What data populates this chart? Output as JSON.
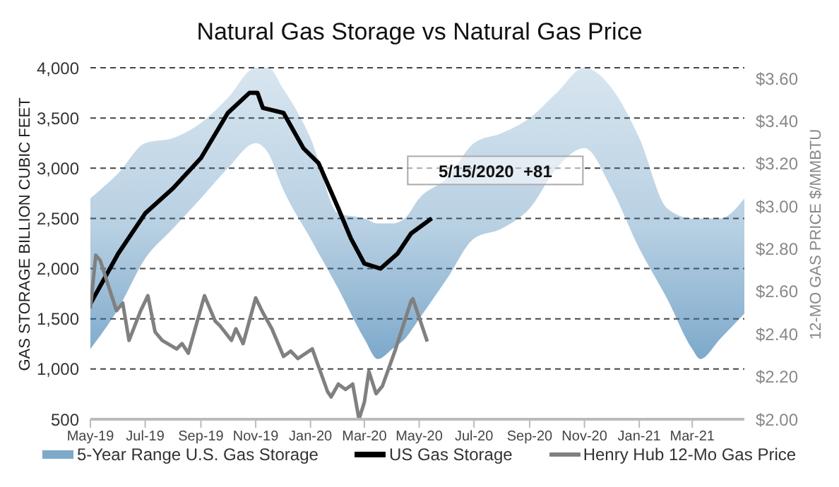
{
  "chart_data": {
    "type": "line",
    "title": "Natural Gas Storage vs Natural Gas Price",
    "ylabel": "GAS STORAGE BILLION CUBIC FEET",
    "y2label": "12-MO GAS PRICE $/MMBTU",
    "xlim": [
      "2019-05-01",
      "2021-04-28"
    ],
    "xticks": [
      {
        "value": "2019-05-01",
        "label": "May-19"
      },
      {
        "value": "2019-07-01",
        "label": "Jul-19"
      },
      {
        "value": "2019-09-01",
        "label": "Sep-19"
      },
      {
        "value": "2019-11-01",
        "label": "Nov-19"
      },
      {
        "value": "2020-01-01",
        "label": "Jan-20"
      },
      {
        "value": "2020-03-01",
        "label": "Mar-20"
      },
      {
        "value": "2020-05-01",
        "label": "May-20"
      },
      {
        "value": "2020-07-01",
        "label": "Jul-20"
      },
      {
        "value": "2020-09-01",
        "label": "Sep-20"
      },
      {
        "value": "2020-11-01",
        "label": "Nov-20"
      },
      {
        "value": "2021-01-01",
        "label": "Jan-21"
      },
      {
        "value": "2021-03-01",
        "label": "Mar-21"
      }
    ],
    "ylim": [
      500,
      4000
    ],
    "yticks": [
      {
        "value": 500,
        "label": "500"
      },
      {
        "value": 1000,
        "label": "1,000"
      },
      {
        "value": 1500,
        "label": "1,500"
      },
      {
        "value": 2000,
        "label": "2,000"
      },
      {
        "value": 2500,
        "label": "2,500"
      },
      {
        "value": 3000,
        "label": "3,000"
      },
      {
        "value": 3500,
        "label": "3,500"
      },
      {
        "value": 4000,
        "label": "4,000"
      }
    ],
    "y2lim": [
      2,
      3.65
    ],
    "y2ticks": [
      {
        "value": 2,
        "label": "$2.00"
      },
      {
        "value": 2.2,
        "label": "$2.20"
      },
      {
        "value": 2.4,
        "label": "$2.40"
      },
      {
        "value": 2.6,
        "label": "$2.60"
      },
      {
        "value": 2.8,
        "label": "$2.80"
      },
      {
        "value": 3,
        "label": "$3.00"
      },
      {
        "value": 3.2,
        "label": "$3.20"
      },
      {
        "value": 3.4,
        "label": "$3.40"
      },
      {
        "value": 3.6,
        "label": "$3.60"
      }
    ],
    "grid": "y",
    "legend": "bottom",
    "line_style": "solid",
    "series": [
      {
        "name": "5-Year Range U.S. Gas Storage",
        "type": "line",
        "color": "#2670a8",
        "x": [
          "2019-05-01",
          "2019-06-01",
          "2019-07-01",
          "2019-08-01",
          "2019-09-01",
          "2019-10-01",
          "2019-11-01",
          "2019-11-15",
          "2019-12-01",
          "2020-01-01",
          "2020-02-01",
          "2020-03-01",
          "2020-03-16",
          "2020-04-01",
          "2020-04-15",
          "2020-05-01",
          "2020-06-01",
          "2020-07-01",
          "2020-08-01",
          "2020-09-01",
          "2020-10-01",
          "2020-11-01",
          "2020-12-01",
          "2021-01-01",
          "2021-02-01",
          "2021-03-01",
          "2021-03-10",
          "2021-04-01",
          "2021-04-28"
        ],
        "values": [
          null,
          null,
          null,
          null,
          null,
          null,
          null,
          null,
          null,
          null,
          null,
          null,
          null,
          null,
          null,
          null,
          null,
          null,
          null,
          null,
          null,
          null,
          null,
          null,
          null,
          null,
          null,
          null,
          null
        ],
        "lower": [
          1200,
          1600,
          2100,
          2400,
          2700,
          3000,
          3250,
          3150,
          2800,
          2300,
          1800,
          1300,
          1100,
          1200,
          1300,
          1500,
          1900,
          2300,
          2400,
          2600,
          3000,
          3200,
          2800,
          2200,
          1700,
          1200,
          1100,
          1300,
          1550
        ],
        "upper": [
          2700,
          2950,
          3250,
          3300,
          3450,
          3700,
          4000,
          4000,
          3800,
          3300,
          2550,
          2500,
          2450,
          2450,
          2500,
          2700,
          2900,
          3250,
          3350,
          3500,
          3750,
          4000,
          3800,
          3300,
          2600,
          2500,
          2500,
          2500,
          2700
        ]
      },
      {
        "name": "US Gas Storage",
        "color": "#000000",
        "x": [
          "2019-05-01",
          "2019-06-01",
          "2019-07-01",
          "2019-08-01",
          "2019-09-01",
          "2019-10-01",
          "2019-10-25",
          "2019-11-03",
          "2019-11-09",
          "2019-12-02",
          "2019-12-24",
          "2020-01-10",
          "2020-02-01",
          "2020-02-15",
          "2020-03-01",
          "2020-03-19",
          "2020-04-07",
          "2020-04-22",
          "2020-05-15"
        ],
        "values": [
          1650,
          2150,
          2550,
          2800,
          3100,
          3550,
          3750,
          3750,
          3600,
          3550,
          3200,
          3050,
          2600,
          2300,
          2050,
          2000,
          2150,
          2350,
          2500
        ]
      },
      {
        "name": "Henry Hub 12-Mo Gas Price",
        "color": "#808080",
        "axis": "y2",
        "x": [
          "2019-05-01",
          "2019-05-07",
          "2019-05-12",
          "2019-05-30",
          "2019-06-06",
          "2019-06-13",
          "2019-06-26",
          "2019-07-04",
          "2019-07-12",
          "2019-07-20",
          "2019-08-05",
          "2019-08-11",
          "2019-08-18",
          "2019-09-05",
          "2019-09-17",
          "2019-09-22",
          "2019-10-05",
          "2019-10-10",
          "2019-10-18",
          "2019-11-01",
          "2019-11-09",
          "2019-11-19",
          "2019-12-02",
          "2019-12-10",
          "2019-12-18",
          "2020-01-03",
          "2020-01-20",
          "2020-01-24",
          "2020-02-01",
          "2020-02-09",
          "2020-02-17",
          "2020-02-24",
          "2020-03-01",
          "2020-03-06",
          "2020-03-14",
          "2020-03-21",
          "2020-04-04",
          "2020-04-22",
          "2020-04-24",
          "2020-05-10"
        ],
        "values": [
          2.52,
          2.77,
          2.745,
          2.51,
          2.545,
          2.37,
          2.51,
          2.58,
          2.41,
          2.37,
          2.33,
          2.355,
          2.31,
          2.58,
          2.46,
          2.44,
          2.37,
          2.425,
          2.355,
          2.57,
          2.5,
          2.425,
          2.295,
          2.32,
          2.285,
          2.33,
          2.13,
          2.105,
          2.165,
          2.14,
          2.165,
          2.0,
          2.08,
          2.225,
          2.12,
          2.155,
          2.32,
          2.555,
          2.565,
          2.365
        ]
      }
    ],
    "annotations": [
      {
        "text": "5/15/2020  +81",
        "x": "2020-05-15",
        "y": 2500
      }
    ]
  }
}
